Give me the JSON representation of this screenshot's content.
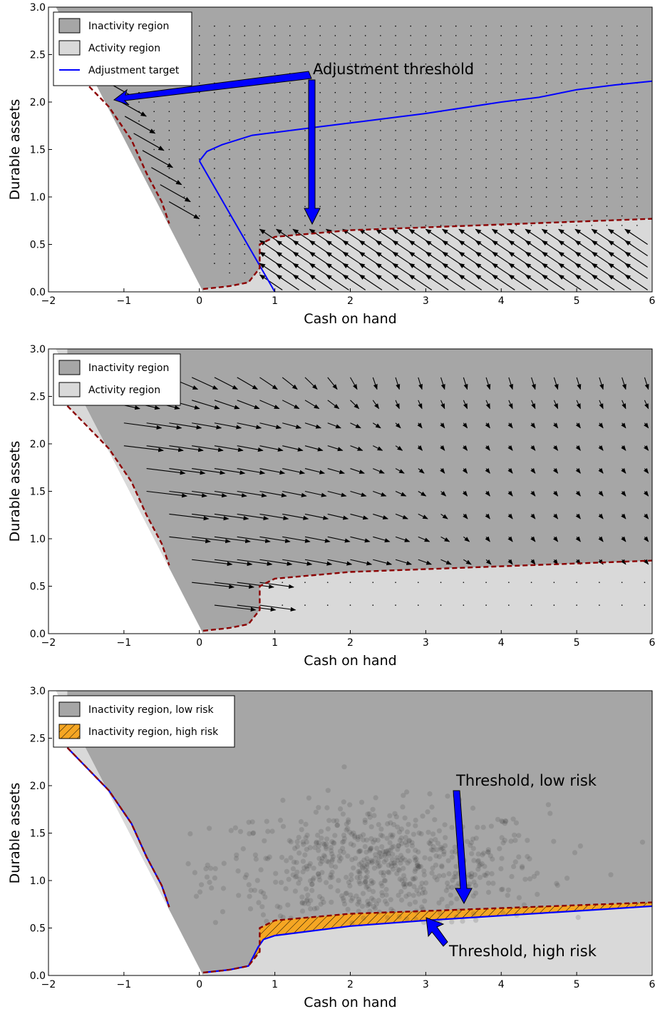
{
  "chart_data": [
    {
      "type": "area",
      "xlabel": "Cash on hand",
      "ylabel": "Durable assets",
      "xlim": [
        -2,
        6
      ],
      "ylim": [
        0,
        3
      ],
      "xticks": [
        "−2",
        "−1",
        "0",
        "1",
        "2",
        "3",
        "4",
        "5",
        "6"
      ],
      "yticks": [
        "0.0",
        "0.5",
        "1.0",
        "1.5",
        "2.0",
        "2.5",
        "3.0"
      ],
      "legend": {
        "placement": "top-left",
        "entries": [
          "Inactivity region",
          "Activity region",
          "Adjustment target"
        ]
      },
      "annotations": [
        "Adjustment threshold"
      ],
      "colors": {
        "inactivity": "#a6a6a6",
        "activity": "#d9d9d9",
        "threshold": "#8b0000",
        "target": "#0000ff"
      },
      "threshold_upper": {
        "x": [
          -1.75,
          -1.2,
          -0.9,
          -0.7,
          -0.5,
          -0.4
        ],
        "y": [
          2.4,
          1.95,
          1.6,
          1.25,
          0.95,
          0.72
        ]
      },
      "threshold_lower": {
        "x": [
          0.05,
          0.4,
          0.65,
          0.8,
          0.8,
          1.0,
          2.0,
          3.0,
          4.0,
          5.0,
          6.0
        ],
        "y": [
          0.03,
          0.06,
          0.1,
          0.25,
          0.5,
          0.58,
          0.65,
          0.68,
          0.71,
          0.74,
          0.77
        ]
      },
      "adjustment_target": {
        "x": [
          0.0,
          0.1,
          0.3,
          0.5,
          0.7,
          1.0,
          1.5,
          2.0,
          3.0,
          4.0,
          4.5,
          5.0,
          5.5,
          6.0
        ],
        "y": [
          1.38,
          1.48,
          1.55,
          1.6,
          1.65,
          1.68,
          1.73,
          1.78,
          1.88,
          2.0,
          2.05,
          2.13,
          2.18,
          2.22
        ]
      },
      "adjustment_target_lower": {
        "x": [
          0.0,
          1.0
        ],
        "y": [
          1.38,
          0.0
        ]
      }
    },
    {
      "type": "area",
      "xlabel": "Cash on hand",
      "ylabel": "Durable assets",
      "xlim": [
        -2,
        6
      ],
      "ylim": [
        0,
        3
      ],
      "xticks": [
        "−2",
        "−1",
        "0",
        "1",
        "2",
        "3",
        "4",
        "5",
        "6"
      ],
      "yticks": [
        "0.0",
        "0.5",
        "1.0",
        "1.5",
        "2.0",
        "2.5",
        "3.0"
      ],
      "legend": {
        "placement": "top-left",
        "entries": [
          "Inactivity region",
          "Activity region"
        ]
      }
    },
    {
      "type": "scatter",
      "xlabel": "Cash on hand",
      "ylabel": "Durable assets",
      "xlim": [
        -2,
        6
      ],
      "ylim": [
        0,
        3
      ],
      "xticks": [
        "−2",
        "−1",
        "0",
        "1",
        "2",
        "3",
        "4",
        "5",
        "6"
      ],
      "yticks": [
        "0.0",
        "0.5",
        "1.0",
        "1.5",
        "2.0",
        "2.5",
        "3.0"
      ],
      "legend": {
        "placement": "top-left",
        "entries": [
          "Inactivity region, low risk",
          "Inactivity region, high risk"
        ]
      },
      "annotations": [
        "Threshold, low risk",
        "Threshold, high risk"
      ],
      "colors": {
        "high_risk_fill": "#f5a623"
      },
      "threshold_high_risk": {
        "x": [
          0.05,
          0.4,
          0.65,
          0.78,
          0.85,
          1.0,
          2.0,
          3.0,
          4.0,
          5.0,
          6.0
        ],
        "y": [
          0.03,
          0.06,
          0.1,
          0.3,
          0.38,
          0.42,
          0.52,
          0.58,
          0.63,
          0.68,
          0.73
        ]
      }
    }
  ]
}
